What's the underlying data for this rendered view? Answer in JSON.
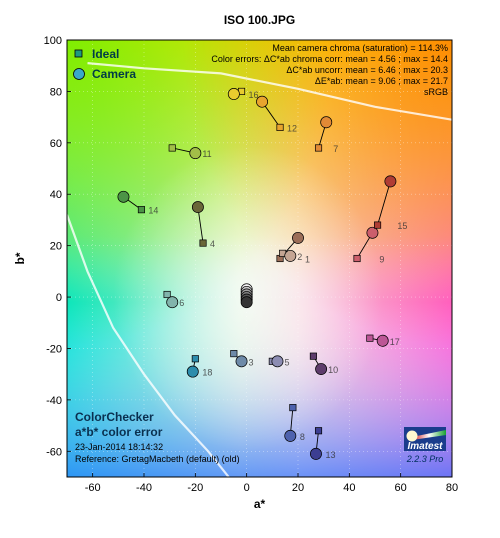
{
  "chart_data": {
    "type": "scatter",
    "title": "ISO 100.JPG",
    "xlabel": "a*",
    "ylabel": "b*",
    "xlim": [
      -70,
      80
    ],
    "ylim": [
      -70,
      100
    ],
    "x_ticks": [
      -60,
      -40,
      -20,
      0,
      20,
      40,
      60,
      80
    ],
    "y_ticks": [
      -60,
      -40,
      -20,
      0,
      20,
      40,
      60,
      80,
      100
    ],
    "grid": true,
    "legend": {
      "placement": "top-left",
      "entries": [
        {
          "label": "Ideal",
          "marker": "square"
        },
        {
          "label": "Camera",
          "marker": "circle"
        }
      ]
    },
    "stats": [
      "Mean camera chroma (saturation) = 114.3%",
      "Color errors: ΔC*ab chroma corr:  mean = 4.56 ;  max = 14.4",
      "ΔC*ab uncorr:  mean = 6.46 ;  max = 20.3",
      "ΔE*ab:  mean = 9.06 ;  max = 21.7",
      "sRGB"
    ],
    "bottom_left_text": {
      "title_line1": "ColorChecker",
      "title_line2": "a*b* color error",
      "date": "23-Jan-2014 18:14:32",
      "reference": "Reference: GretagMacbeth (default) (old)"
    },
    "logo": {
      "name": "Imatest",
      "version": "2.2.3  Pro"
    },
    "patches": [
      {
        "id": "1",
        "ideal": [
          13,
          15
        ],
        "camera": [
          20,
          23
        ],
        "color": "#9c6e58"
      },
      {
        "id": "2",
        "ideal": [
          14,
          17
        ],
        "camera": [
          17,
          16
        ],
        "color": "#c5a593"
      },
      {
        "id": "3",
        "ideal": [
          -5,
          -22
        ],
        "camera": [
          -2,
          -25
        ],
        "color": "#6e8aa8"
      },
      {
        "id": "4",
        "ideal": [
          -17,
          21
        ],
        "camera": [
          -19,
          35
        ],
        "color": "#6a6638"
      },
      {
        "id": "5",
        "ideal": [
          10,
          -25
        ],
        "camera": [
          12,
          -25
        ],
        "color": "#8c8cb2"
      },
      {
        "id": "6",
        "ideal": [
          -31,
          1
        ],
        "camera": [
          -29,
          -2
        ],
        "color": "#82b4ac"
      },
      {
        "id": "7",
        "ideal": [
          28,
          58
        ],
        "camera": [
          31,
          68
        ],
        "color": "#e28a36"
      },
      {
        "id": "8",
        "ideal": [
          18,
          -43
        ],
        "camera": [
          17,
          -54
        ],
        "color": "#4e62ae"
      },
      {
        "id": "9",
        "ideal": [
          43,
          15
        ],
        "camera": [
          49,
          25
        ],
        "color": "#cc5e6c"
      },
      {
        "id": "10",
        "ideal": [
          26,
          -23
        ],
        "camera": [
          29,
          -28
        ],
        "color": "#5e3c6c"
      },
      {
        "id": "11",
        "ideal": [
          -29,
          58
        ],
        "camera": [
          -20,
          56
        ],
        "color": "#a2be48"
      },
      {
        "id": "12",
        "ideal": [
          13,
          66
        ],
        "camera": [
          6,
          76
        ],
        "color": "#e8a42e"
      },
      {
        "id": "13",
        "ideal": [
          28,
          -52
        ],
        "camera": [
          27,
          -61
        ],
        "color": "#3c3e92"
      },
      {
        "id": "14",
        "ideal": [
          -41,
          34
        ],
        "camera": [
          -48,
          39
        ],
        "color": "#4c9446"
      },
      {
        "id": "15",
        "ideal": [
          51,
          28
        ],
        "camera": [
          56,
          45
        ],
        "color": "#b03c34"
      },
      {
        "id": "16",
        "ideal": [
          -2,
          80
        ],
        "camera": [
          -5,
          79
        ],
        "color": "#e8cc2e"
      },
      {
        "id": "17",
        "ideal": [
          48,
          -16
        ],
        "camera": [
          53,
          -17
        ],
        "color": "#bc5696"
      },
      {
        "id": "18",
        "ideal": [
          -20,
          -24
        ],
        "camera": [
          -21,
          -29
        ],
        "color": "#2c8cac"
      },
      {
        "id": "19",
        "ideal": [
          0,
          2
        ],
        "camera": [
          0,
          3
        ],
        "color": "#f4f4f4"
      },
      {
        "id": "20",
        "ideal": [
          0,
          1
        ],
        "camera": [
          0,
          2
        ],
        "color": "#c8c8c8"
      },
      {
        "id": "21",
        "ideal": [
          0,
          0
        ],
        "camera": [
          0,
          1
        ],
        "color": "#a0a0a0"
      },
      {
        "id": "22",
        "ideal": [
          0,
          -1
        ],
        "camera": [
          0,
          0
        ],
        "color": "#7a7a7a"
      },
      {
        "id": "23",
        "ideal": [
          0,
          -1
        ],
        "camera": [
          0,
          -1
        ],
        "color": "#555555"
      },
      {
        "id": "24",
        "ideal": [
          0,
          -2
        ],
        "camera": [
          0,
          -2
        ],
        "color": "#343434"
      }
    ],
    "ideal_marker_color": "#1e9a80",
    "camera_marker_color": "#3aa8c8"
  }
}
